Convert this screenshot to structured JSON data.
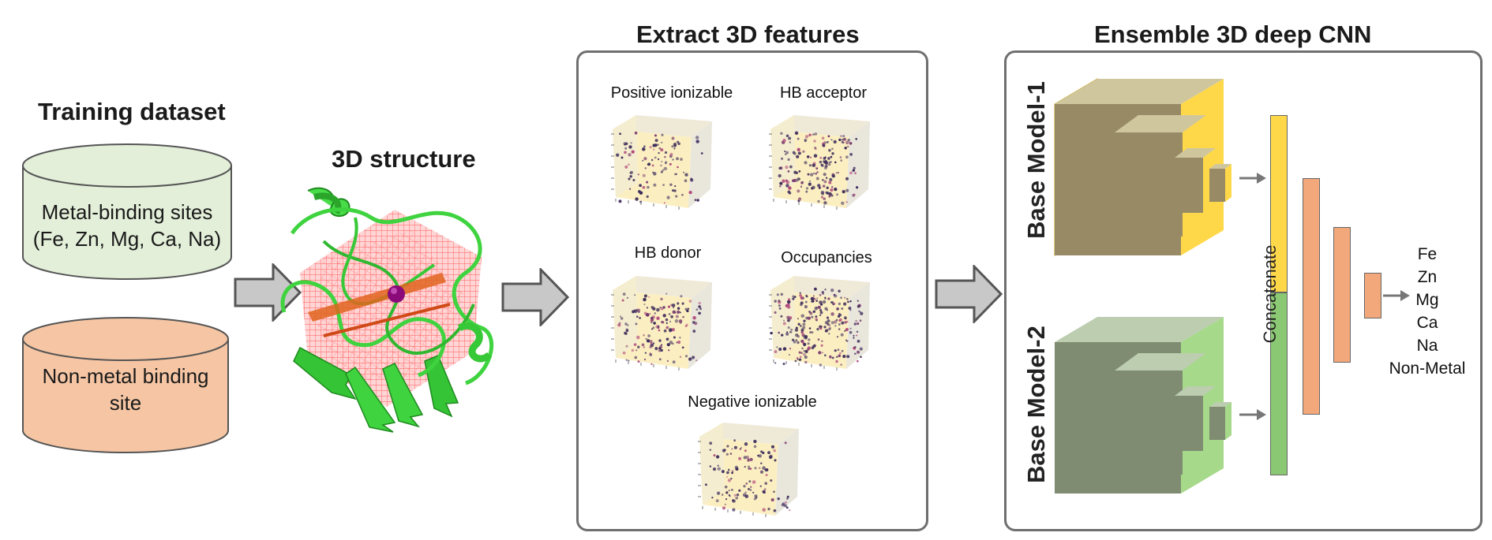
{
  "training": {
    "title": "Training dataset",
    "metal_sites": [
      "Metal-binding sites",
      "(Fe, Zn, Mg, Ca, Na)"
    ],
    "nonmetal_sites": [
      "Non-metal binding",
      "site"
    ]
  },
  "structure": {
    "title": "3D structure"
  },
  "features": {
    "title": "Extract 3D features",
    "items": [
      {
        "label": "Positive ionizable"
      },
      {
        "label": "HB acceptor"
      },
      {
        "label": "HB donor"
      },
      {
        "label": "Occupancies"
      },
      {
        "label": "Negative ionizable"
      }
    ]
  },
  "ensemble": {
    "title": "Ensemble 3D deep CNN",
    "base_model_1": "Base Model-1",
    "base_model_2": "Base Model-2",
    "concatenate": "Concatenate",
    "outputs": [
      "Fe",
      "Zn",
      "Mg",
      "Ca",
      "Na",
      "Non-Metal"
    ]
  },
  "colors": {
    "metal_cylinder": "#e3efd9",
    "nonmetal_cylinder": "#f6c6a4",
    "arrow_fill": "#c8c8c8",
    "model1_face": "#978a64",
    "model1_side": "#ffd84a",
    "model1_top": "#cfc69e",
    "model2_face": "#7f8c72",
    "model2_side": "#a6d98a",
    "model2_top": "#bccdb0",
    "concat_top": "#ffd84a",
    "concat_bottom": "#8bc873",
    "dense": "#f2a87a",
    "protein": "#3fd33f",
    "grid": "#ff4d4d",
    "metal_ion": "#8b0a7a"
  }
}
